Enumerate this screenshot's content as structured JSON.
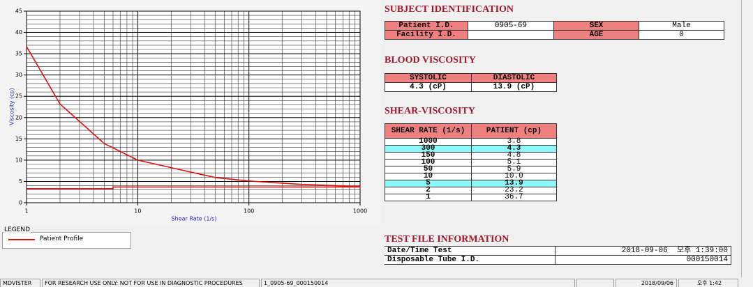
{
  "chart_data": {
    "type": "line",
    "x_label": "Shear Rate (1/s)",
    "y_label": "Viscosity (cp)",
    "log_x": true,
    "grid": true,
    "xlim": [
      1,
      1000
    ],
    "xticks": [
      1,
      10,
      100,
      1000
    ],
    "ylim": [
      0,
      45
    ],
    "yticks": [
      0,
      5,
      10,
      15,
      20,
      25,
      30,
      35,
      40,
      45
    ],
    "series": [
      {
        "name": "Patient Profile",
        "color": "#e01010",
        "x": [
          1,
          2,
          5,
          10,
          50,
          100,
          150,
          300,
          1000
        ],
        "values": [
          36.7,
          23.2,
          13.9,
          10.0,
          5.9,
          5.1,
          4.8,
          4.3,
          3.8
        ]
      },
      {
        "color": "#e01010",
        "x": [
          1,
          6,
          6,
          1000
        ],
        "values": [
          3.3,
          3.3,
          3.7,
          3.7
        ]
      }
    ],
    "legend_title": "LEGEND"
  },
  "subject": {
    "title": "SUBJECT IDENTIFICATION",
    "patient_id_label": "Patient I.D.",
    "patient_id": "0905-69",
    "sex_label": "SEX",
    "sex": "Male",
    "facility_label": "Facility I.D.",
    "age_label": "AGE",
    "age": "0"
  },
  "blood": {
    "title": "BLOOD VISCOSITY",
    "headers": [
      "SYSTOLIC",
      "DIASTOLIC"
    ],
    "values": [
      "4.3 (cP)",
      "13.9 (cP)"
    ]
  },
  "shear": {
    "title": "SHEAR-VISCOSITY",
    "headers": [
      "SHEAR RATE (1/s)",
      "PATIENT (cp)"
    ],
    "rows": [
      [
        "1000",
        "3.8"
      ],
      [
        "300",
        "4.3"
      ],
      [
        "150",
        "4.8"
      ],
      [
        "100",
        "5.1"
      ],
      [
        "50",
        "5.9"
      ],
      [
        "10",
        "10.0"
      ],
      [
        "5",
        "13.9"
      ],
      [
        "2",
        "23.2"
      ],
      [
        "1",
        "36.7"
      ]
    ],
    "highlight_rows": [
      1,
      6
    ]
  },
  "test_file": {
    "title": "TEST FILE INFORMATION",
    "rows": [
      [
        "Date/Time Test",
        "2018-09-06  오후 1:39:00"
      ],
      [
        "Disposable Tube I.D.",
        "000150014"
      ]
    ]
  },
  "status_bar": [
    "MDVISTER",
    "FOR RESEARCH USE ONLY: NOT FOR USE IN DIAGNOSTIC PROCEDURES",
    "1_0905-69_000150014",
    "2018/09/06",
    "오후 1:42"
  ]
}
